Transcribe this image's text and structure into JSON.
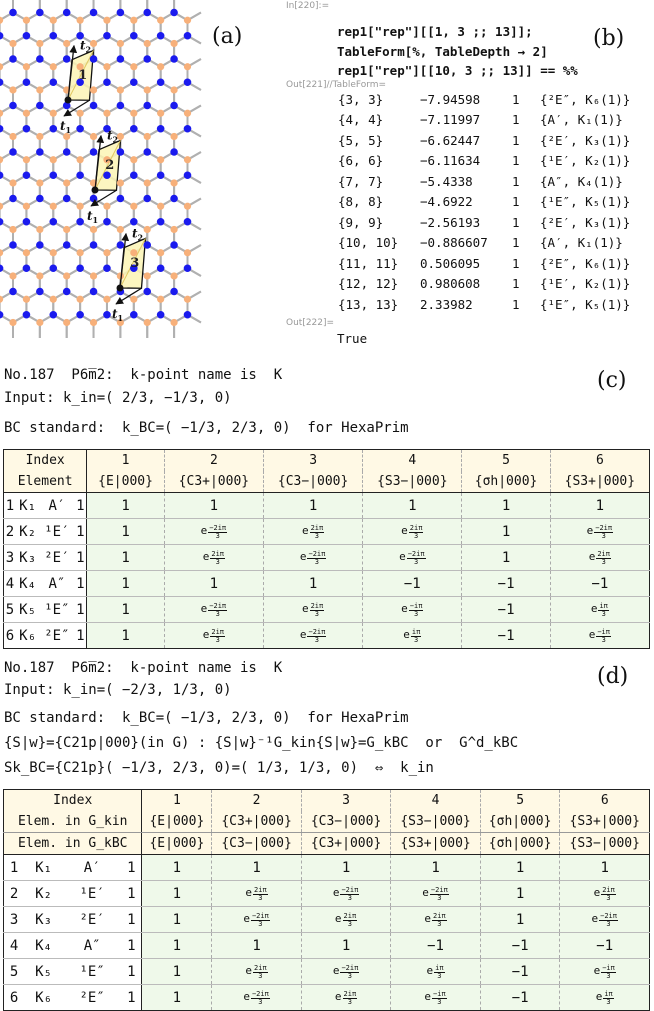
{
  "panel_labels": {
    "a": "(a)",
    "b": "(b)",
    "c": "(c)",
    "d": "(d)"
  },
  "panel_a": {
    "cells": [
      {
        "num": "1",
        "t1": "t",
        "t1_sub": "1",
        "t2": "t",
        "t2_sub": "2"
      },
      {
        "num": "2",
        "t1": "t",
        "t1_sub": "1",
        "t2": "t",
        "t2_sub": "2"
      },
      {
        "num": "3",
        "t1": "t",
        "t1_sub": "1",
        "t2": "t",
        "t2_sub": "2"
      }
    ],
    "colors": {
      "lattice": "#b0b0b0",
      "blue_site": "#1a1aee",
      "orange_site": "#f7b07a",
      "cell_fill": "#fbf4b5"
    }
  },
  "panel_b": {
    "in_label": "In[220]:=",
    "code_lines": [
      "rep1[\"rep\"][[1, 3 ;; 13]];",
      "TableForm[%, TableDepth → 2]",
      "rep1[\"rep\"][[10, 3 ;; 13]] == %%"
    ],
    "out_label": "Out[221]//TableForm=",
    "rows": [
      {
        "idx": "{3, 3}",
        "val": "−7.94598",
        "one": "1",
        "irrep": "{²E″, K₆(1)}"
      },
      {
        "idx": "{4, 4}",
        "val": "−7.11997",
        "one": "1",
        "irrep": "{A′, K₁(1)}"
      },
      {
        "idx": "{5, 5}",
        "val": "−6.62447",
        "one": "1",
        "irrep": "{²E′, K₃(1)}"
      },
      {
        "idx": "{6, 6}",
        "val": "−6.11634",
        "one": "1",
        "irrep": "{¹E′, K₂(1)}"
      },
      {
        "idx": "{7, 7}",
        "val": "−5.4338",
        "one": "1",
        "irrep": "{A″, K₄(1)}"
      },
      {
        "idx": "{8, 8}",
        "val": "−4.6922",
        "one": "1",
        "irrep": "{¹E″, K₅(1)}"
      },
      {
        "idx": "{9, 9}",
        "val": "−2.56193",
        "one": "1",
        "irrep": "{²E′, K₃(1)}"
      },
      {
        "idx": "{10, 10}",
        "val": "−0.886607",
        "one": "1",
        "irrep": "{A′, K₁(1)}"
      },
      {
        "idx": "{11, 11}",
        "val": "0.506095",
        "one": "1",
        "irrep": "{²E″, K₆(1)}"
      },
      {
        "idx": "{12, 12}",
        "val": "0.980608",
        "one": "1",
        "irrep": "{¹E′, K₂(1)}"
      },
      {
        "idx": "{13, 13}",
        "val": "2.33982",
        "one": "1",
        "irrep": "{¹E″, K₅(1)}"
      }
    ],
    "out2_label": "Out[222]=",
    "result": "True"
  },
  "panel_c": {
    "line1": "No.187  P6̅m2:  k-point name is  K",
    "line2": "Input: k_in=( 2/3, −1/3, 0)",
    "line3": "BC standard:  k_BC=( −1/3, 2/3, 0)  for HexaPrim",
    "header_index": "Index",
    "header_element": "Element",
    "col_nums": [
      "1",
      "2",
      "3",
      "4",
      "5",
      "6"
    ],
    "col_elems": [
      "{E|000}",
      "{C3+|000}",
      "{C3−|000}",
      "{S3−|000}",
      "{σh|000}",
      "{S3+|000}"
    ],
    "rows": [
      {
        "n": "1",
        "k": "K₁",
        "ir": "A′",
        "d": "1",
        "vals": [
          "1",
          "1",
          "1",
          "1",
          "1",
          "1"
        ]
      },
      {
        "n": "2",
        "k": "K₂",
        "ir": "¹E′",
        "d": "1",
        "vals": [
          "1",
          "e^(−2iπ/3)",
          "e^(2iπ/3)",
          "e^(2iπ/3)",
          "1",
          "e^(−2iπ/3)"
        ]
      },
      {
        "n": "3",
        "k": "K₃",
        "ir": "²E′",
        "d": "1",
        "vals": [
          "1",
          "e^(2iπ/3)",
          "e^(−2iπ/3)",
          "e^(−2iπ/3)",
          "1",
          "e^(2iπ/3)"
        ]
      },
      {
        "n": "4",
        "k": "K₄",
        "ir": "A″",
        "d": "1",
        "vals": [
          "1",
          "1",
          "1",
          "−1",
          "−1",
          "−1"
        ]
      },
      {
        "n": "5",
        "k": "K₅",
        "ir": "¹E″",
        "d": "1",
        "vals": [
          "1",
          "e^(−2iπ/3)",
          "e^(2iπ/3)",
          "e^(−iπ/3)",
          "−1",
          "e^(iπ/3)"
        ]
      },
      {
        "n": "6",
        "k": "K₆",
        "ir": "²E″",
        "d": "1",
        "vals": [
          "1",
          "e^(2iπ/3)",
          "e^(−2iπ/3)",
          "e^(iπ/3)",
          "−1",
          "e^(−iπ/3)"
        ]
      }
    ]
  },
  "panel_d": {
    "line1": "No.187  P6̅m2:  k-point name is  K",
    "line2": "Input: k_in=( −2/3, 1/3, 0)",
    "line3": "BC standard:  k_BC=( −1/3, 2/3, 0)  for HexaPrim",
    "line4": "{S|w}={C21p|000}(in G) : {S|w}⁻¹G_kin{S|w}=G_kBC  or  G^d_kBC",
    "line5": "Sk_BC={C21p}( −1/3, 2/3, 0)=( 1/3, 1/3, 0)  ⇔  k_in",
    "header_index": "Index",
    "header_elem_kin": "Elem. in G_kin",
    "header_elem_kbc": "Elem. in G_kBC",
    "col_nums": [
      "1",
      "2",
      "3",
      "4",
      "5",
      "6"
    ],
    "col_elems_kin": [
      "{E|000}",
      "{C3+|000}",
      "{C3−|000}",
      "{S3−|000}",
      "{σh|000}",
      "{S3+|000}"
    ],
    "col_elems_kbc": [
      "{E|000}",
      "{C3−|000}",
      "{C3+|000}",
      "{S3+|000}",
      "{σh|000}",
      "{S3−|000}"
    ],
    "rows": [
      {
        "n": "1",
        "k": "K₁",
        "ir": "A′",
        "d": "1",
        "vals": [
          "1",
          "1",
          "1",
          "1",
          "1",
          "1"
        ]
      },
      {
        "n": "2",
        "k": "K₂",
        "ir": "¹E′",
        "d": "1",
        "vals": [
          "1",
          "e^(2iπ/3)",
          "e^(−2iπ/3)",
          "e^(−2iπ/3)",
          "1",
          "e^(2iπ/3)"
        ]
      },
      {
        "n": "3",
        "k": "K₃",
        "ir": "²E′",
        "d": "1",
        "vals": [
          "1",
          "e^(−2iπ/3)",
          "e^(2iπ/3)",
          "e^(2iπ/3)",
          "1",
          "e^(−2iπ/3)"
        ]
      },
      {
        "n": "4",
        "k": "K₄",
        "ir": "A″",
        "d": "1",
        "vals": [
          "1",
          "1",
          "1",
          "−1",
          "−1",
          "−1"
        ]
      },
      {
        "n": "5",
        "k": "K₅",
        "ir": "¹E″",
        "d": "1",
        "vals": [
          "1",
          "e^(2iπ/3)",
          "e^(−2iπ/3)",
          "e^(iπ/3)",
          "−1",
          "e^(−iπ/3)"
        ]
      },
      {
        "n": "6",
        "k": "K₆",
        "ir": "²E″",
        "d": "1",
        "vals": [
          "1",
          "e^(−2iπ/3)",
          "e^(2iπ/3)",
          "e^(−iπ/3)",
          "−1",
          "e^(iπ/3)"
        ]
      }
    ]
  }
}
